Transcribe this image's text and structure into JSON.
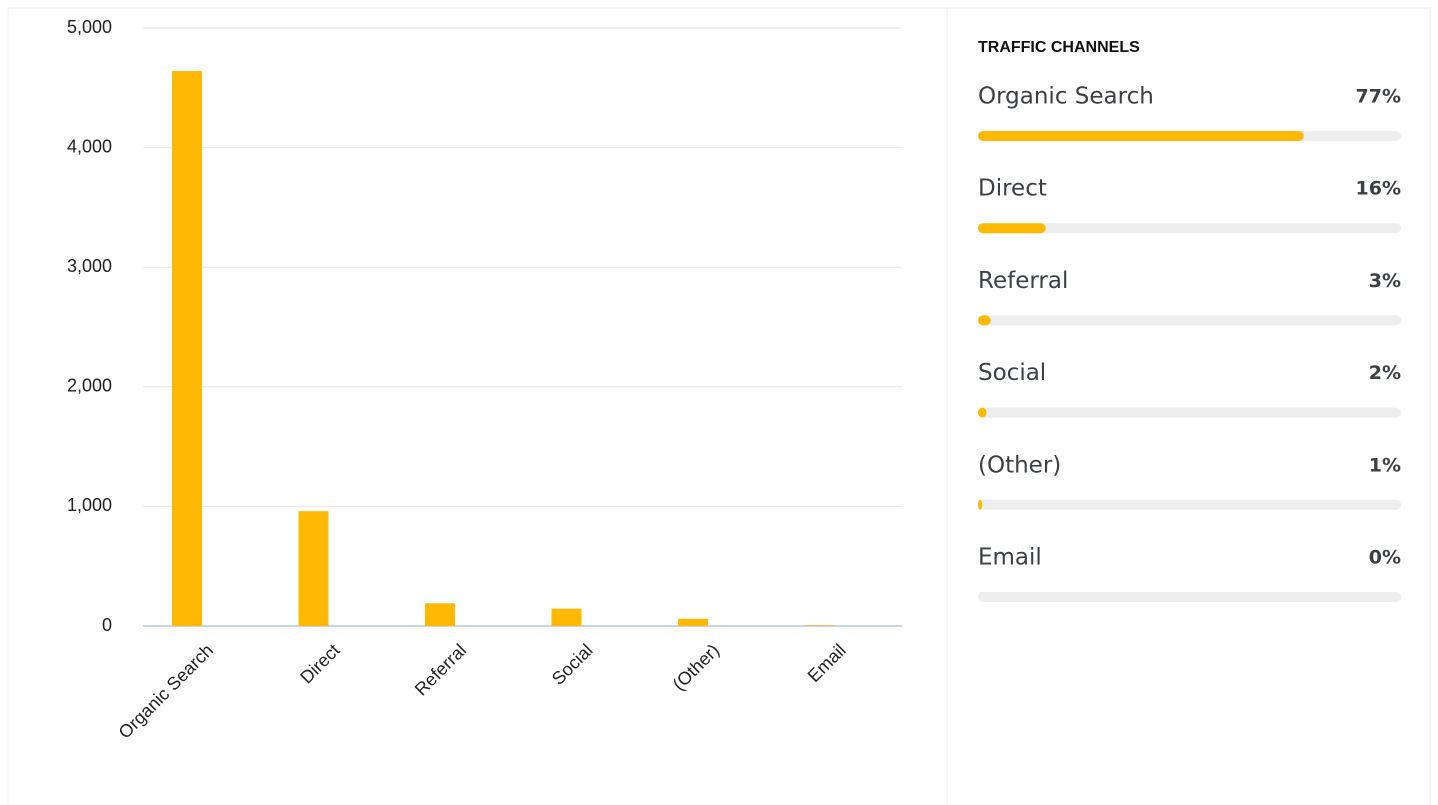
{
  "chart_data": {
    "type": "bar",
    "categories": [
      "Organic Search",
      "Direct",
      "Referral",
      "Social",
      "(Other)",
      "Email"
    ],
    "values": [
      4640,
      960,
      190,
      145,
      60,
      5
    ],
    "color": "#ffb900",
    "ylim": [
      0,
      5000
    ],
    "yticks": [
      0,
      {
        "value": 1000,
        "label": "1,000"
      },
      {
        "value": 2000,
        "label": "2,000"
      },
      {
        "value": 3000,
        "label": "3,000"
      },
      {
        "value": 4000,
        "label": "4,000"
      },
      {
        "value": 5000,
        "label": "5,000"
      }
    ],
    "grid": true
  },
  "panel": {
    "title": "TRAFFIC CHANNELS",
    "items": [
      {
        "name": "Organic Search",
        "value": 77,
        "label": "77%"
      },
      {
        "name": "Direct",
        "value": 16,
        "label": "16%"
      },
      {
        "name": "Referral",
        "value": 3,
        "label": "3%"
      },
      {
        "name": "Social",
        "value": 2,
        "label": "2%"
      },
      {
        "name": "(Other)",
        "value": 1,
        "label": "1%"
      },
      {
        "name": "Email",
        "value": 0,
        "label": "0%"
      }
    ]
  }
}
